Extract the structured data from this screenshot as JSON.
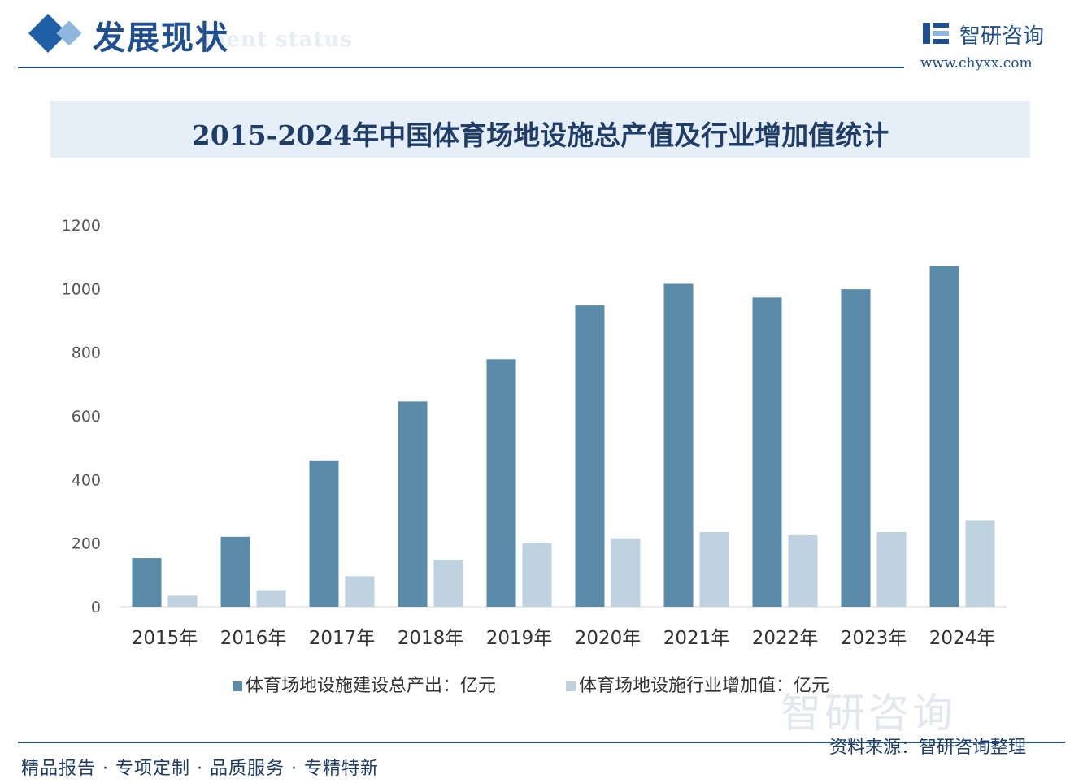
{
  "header": {
    "section_title": "发展现状",
    "section_subtitle": "ment status",
    "logo_name": "智研咨询",
    "logo_url": "www.chyxx.com",
    "brand_color": "#1f4f8f"
  },
  "watermark": {
    "text": "智研咨询"
  },
  "chart_data": {
    "type": "bar",
    "title": "2015-2024年中国体育场地设施总产值及行业增加值统计",
    "categories": [
      "2015年",
      "2016年",
      "2017年",
      "2018年",
      "2019年",
      "2020年",
      "2021年",
      "2022年",
      "2023年",
      "2024年"
    ],
    "series": [
      {
        "name": "体育场地设施建设总产出：亿元",
        "color": "#5a8ba8",
        "values": [
          153,
          220,
          460,
          645,
          778,
          947,
          1015,
          972,
          998,
          1070
        ]
      },
      {
        "name": "体育场地设施行业增加值：亿元",
        "color": "#bfd2e0",
        "values": [
          35,
          50,
          96,
          148,
          200,
          215,
          235,
          225,
          235,
          272
        ]
      }
    ],
    "yticks": [
      0,
      200,
      400,
      600,
      800,
      1000,
      1200
    ],
    "ylim": [
      0,
      1200
    ],
    "xlabel": "",
    "ylabel": "",
    "grid": false,
    "legend": "bottom"
  },
  "footer": {
    "left_text": "精品报告 · 专项定制 · 品质服务 · 专精特新",
    "source": "资料来源：智研咨询整理"
  }
}
